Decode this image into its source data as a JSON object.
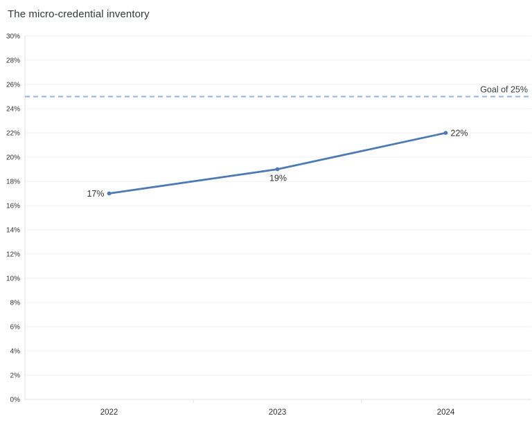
{
  "title": "The micro-credential inventory",
  "chart_data": {
    "type": "line",
    "title": "The micro-credential inventory",
    "categories": [
      "2022",
      "2023",
      "2024"
    ],
    "series": [
      {
        "values": [
          17,
          19,
          22
        ],
        "color": "#4d7ab0"
      }
    ],
    "data_labels": [
      "17%",
      "19%",
      "22%"
    ],
    "data_label_placements": [
      "left",
      "below",
      "right"
    ],
    "ylim": [
      0,
      30
    ],
    "ytick_step": 2,
    "ytick_labels": [
      "0%",
      "2%",
      "4%",
      "6%",
      "8%",
      "10%",
      "12%",
      "14%",
      "16%",
      "18%",
      "20%",
      "22%",
      "24%",
      "26%",
      "28%",
      "30%"
    ],
    "grid": "horizontal",
    "legend": "none",
    "reference_line": {
      "value": 25,
      "label": "Goal of 25%",
      "style": "dashed",
      "color": "#8fb6d9"
    }
  },
  "colors": {
    "background": "#ffffff",
    "grid": "#f2f2f2",
    "axis": "#e1e1e1",
    "tick_text": "#333333",
    "label_text": "#333333",
    "goal_text": "#3a3e43",
    "title_text": "#33373c"
  }
}
